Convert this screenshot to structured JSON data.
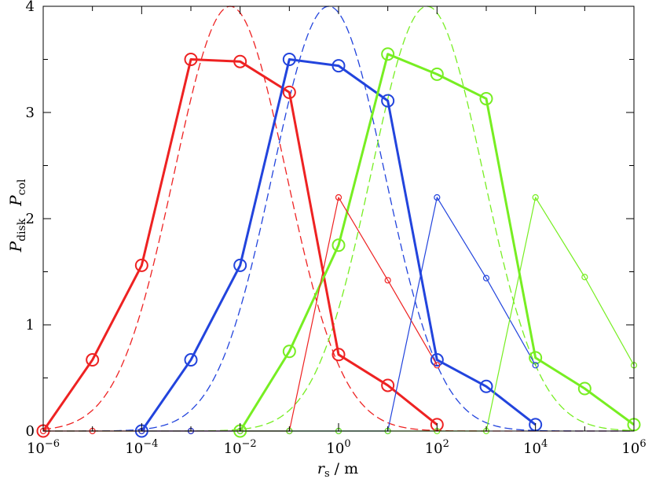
{
  "chart_data": {
    "type": "line",
    "title": "",
    "xlabel": "r_s / m",
    "xlabel_parts": {
      "main": "r",
      "sub": "s",
      "unit": " / m"
    },
    "ylabel_parts": {
      "p1": "P",
      "s1": "disk",
      "p2": "P",
      "s2": "col"
    },
    "xscale": "log",
    "xlim": [
      1e-06,
      1000000.0
    ],
    "ylim": [
      0,
      4
    ],
    "grid": false,
    "legend": "none",
    "x_ticks": [
      {
        "value": 1e-06,
        "base": "10",
        "exp": "−6"
      },
      {
        "value": 0.0001,
        "base": "10",
        "exp": "−4"
      },
      {
        "value": 0.01,
        "base": "10",
        "exp": "−2"
      },
      {
        "value": 1,
        "base": "10",
        "exp": "0"
      },
      {
        "value": 100,
        "base": "10",
        "exp": "2"
      },
      {
        "value": 10000.0,
        "base": "10",
        "exp": "4"
      },
      {
        "value": 1000000.0,
        "base": "10",
        "exp": "6"
      }
    ],
    "y_ticks": [
      "0",
      "1",
      "2",
      "3",
      "4"
    ],
    "series": [
      {
        "color": "#ee2222",
        "style": "thick-large-markers",
        "x": [
          1e-06,
          1e-05,
          0.0001,
          0.001,
          0.01,
          0.1,
          1,
          10,
          100
        ],
        "y": [
          0,
          0.67,
          1.56,
          3.5,
          3.48,
          3.19,
          0.72,
          0.43,
          0.06
        ]
      },
      {
        "color": "#2244dd",
        "style": "thick-large-markers",
        "x": [
          0.0001,
          0.001,
          0.01,
          0.1,
          1,
          10,
          100,
          1000,
          10000.0
        ],
        "y": [
          0,
          0.67,
          1.56,
          3.5,
          3.44,
          3.11,
          0.67,
          0.42,
          0.06
        ]
      },
      {
        "color": "#77ee22",
        "style": "thick-large-markers",
        "x": [
          0.01,
          0.1,
          1,
          10,
          100,
          1000,
          10000.0,
          100000.0,
          1000000.0
        ],
        "y": [
          0,
          0.75,
          1.75,
          3.55,
          3.36,
          3.13,
          0.69,
          0.4,
          0.06
        ]
      },
      {
        "color": "#ee2222",
        "style": "thin-small-markers",
        "x": [
          1e-06,
          1e-05,
          0.0001,
          0.001,
          0.01,
          0.1,
          1,
          10,
          100
        ],
        "y": [
          0,
          0,
          0,
          0,
          0,
          0,
          2.2,
          1.42,
          0.62
        ]
      },
      {
        "color": "#2244dd",
        "style": "thin-small-markers",
        "x": [
          0.0001,
          0.001,
          0.01,
          0.1,
          1,
          10,
          100,
          1000,
          10000.0
        ],
        "y": [
          0,
          0,
          0,
          0,
          0,
          0,
          2.2,
          1.44,
          0.62
        ]
      },
      {
        "color": "#77ee22",
        "style": "thin-small-markers",
        "x": [
          0.01,
          0.1,
          1,
          10,
          100,
          1000,
          10000.0,
          100000.0,
          1000000.0
        ],
        "y": [
          0,
          0,
          0,
          0,
          0,
          0,
          2.2,
          1.45,
          0.62
        ]
      },
      {
        "color": "#ee2222",
        "style": "dashed-gaussian",
        "peak": 4.0,
        "center_log10": -2.2,
        "sigma_log10": 1.14
      },
      {
        "color": "#2244dd",
        "style": "dashed-gaussian",
        "peak": 4.0,
        "center_log10": -0.2,
        "sigma_log10": 1.14
      },
      {
        "color": "#77ee22",
        "style": "dashed-gaussian",
        "peak": 4.0,
        "center_log10": 1.8,
        "sigma_log10": 1.14
      }
    ]
  }
}
